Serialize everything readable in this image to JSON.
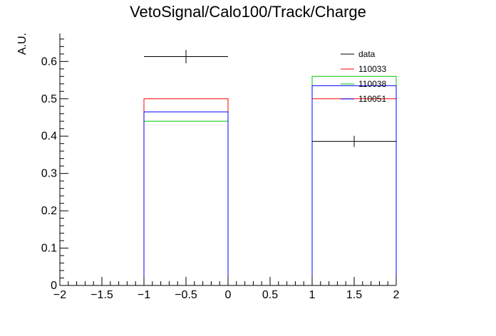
{
  "chart_data": {
    "type": "histogram",
    "title": "VetoSignal/Calo100/Track/Charge",
    "xlabel": "",
    "ylabel": "A.U.",
    "xlim": [
      -2,
      2
    ],
    "ylim": [
      0,
      0.675
    ],
    "x_ticks": [
      "−2",
      "−1.5",
      "−1",
      "−0.5",
      "0",
      "0.5",
      "1",
      "1.5",
      "2"
    ],
    "y_ticks": [
      "0",
      "0.1",
      "0.2",
      "0.3",
      "0.4",
      "0.5",
      "0.6"
    ],
    "bin_edges": [
      -2,
      -1,
      0,
      1,
      2
    ],
    "data_points": {
      "name": "data",
      "color": "#000000",
      "x": [
        -0.5,
        1.5
      ],
      "y": [
        0.613,
        0.386
      ],
      "yerr": [
        0.018,
        0.015
      ],
      "xerr": [
        0.5,
        0.5
      ]
    },
    "series": [
      {
        "name": "110033",
        "color": "#ff0000",
        "values": [
          0,
          0.5,
          0,
          0.5
        ]
      },
      {
        "name": "110038",
        "color": "#00cc00",
        "values": [
          0,
          0.44,
          0,
          0.56
        ]
      },
      {
        "name": "110051",
        "color": "#0000ff",
        "values": [
          0,
          0.465,
          0,
          0.535
        ]
      }
    ],
    "legend": {
      "position": "top-right",
      "entries": [
        {
          "label": "data",
          "color": "#000000"
        },
        {
          "label": "110033",
          "color": "#ff0000"
        },
        {
          "label": "110038",
          "color": "#00cc00"
        },
        {
          "label": "110051",
          "color": "#0000ff"
        }
      ]
    }
  }
}
